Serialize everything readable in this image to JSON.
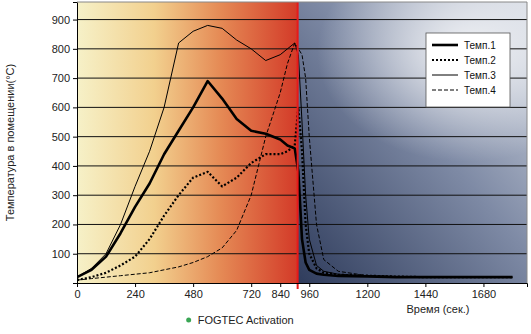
{
  "chart_data": {
    "type": "line",
    "y_label": "Температура в помещении(°C)",
    "x_label": "Время (сек.)",
    "x": [
      0,
      60,
      120,
      180,
      240,
      300,
      360,
      420,
      480,
      540,
      600,
      660,
      720,
      780,
      840,
      870,
      900,
      915,
      930,
      945,
      960,
      990,
      1020,
      1080,
      1200,
      1320,
      1440,
      1560,
      1680,
      1800
    ],
    "series": [
      {
        "name": "Темп.1",
        "color": "#000000",
        "line_style": "solid",
        "values": [
          20,
          45,
          90,
          170,
          260,
          340,
          440,
          520,
          600,
          690,
          630,
          560,
          520,
          510,
          490,
          470,
          460,
          380,
          150,
          70,
          45,
          32,
          28,
          24,
          22,
          20,
          20,
          20,
          20,
          20
        ]
      },
      {
        "name": "Темп.2",
        "color": "#000000",
        "line_style": "dotted",
        "values": [
          10,
          20,
          35,
          60,
          90,
          150,
          230,
          300,
          360,
          380,
          330,
          360,
          410,
          440,
          440,
          450,
          470,
          600,
          450,
          200,
          100,
          50,
          35,
          28,
          25,
          22,
          20,
          20,
          20,
          20
        ]
      },
      {
        "name": "Темп.3",
        "color": "#000000",
        "line_style": "solid",
        "values": [
          20,
          50,
          100,
          200,
          330,
          450,
          600,
          820,
          860,
          880,
          870,
          830,
          800,
          760,
          780,
          800,
          820,
          780,
          550,
          300,
          150,
          60,
          40,
          30,
          25,
          22,
          20,
          20,
          20,
          20
        ]
      },
      {
        "name": "Темп.4",
        "color": "#000000",
        "line_style": "dashed",
        "values": [
          10,
          15,
          20,
          25,
          30,
          35,
          45,
          55,
          70,
          90,
          120,
          180,
          300,
          500,
          650,
          750,
          820,
          800,
          780,
          700,
          500,
          200,
          80,
          40,
          25,
          22,
          20,
          20,
          20,
          20
        ]
      }
    ],
    "xlim": [
      0,
      1860
    ],
    "ylim": [
      0,
      960
    ],
    "xticks": [
      0,
      240,
      480,
      720,
      840,
      960,
      1200,
      1440,
      1680
    ],
    "yticks": [
      100,
      200,
      300,
      400,
      500,
      600,
      700,
      800,
      900
    ],
    "grid": true,
    "legend": "upper right",
    "annotations": [
      {
        "text": "FOGTEC Activation",
        "x": 912,
        "color": "#e8191a",
        "marker_color": "#3aa655"
      }
    ]
  }
}
